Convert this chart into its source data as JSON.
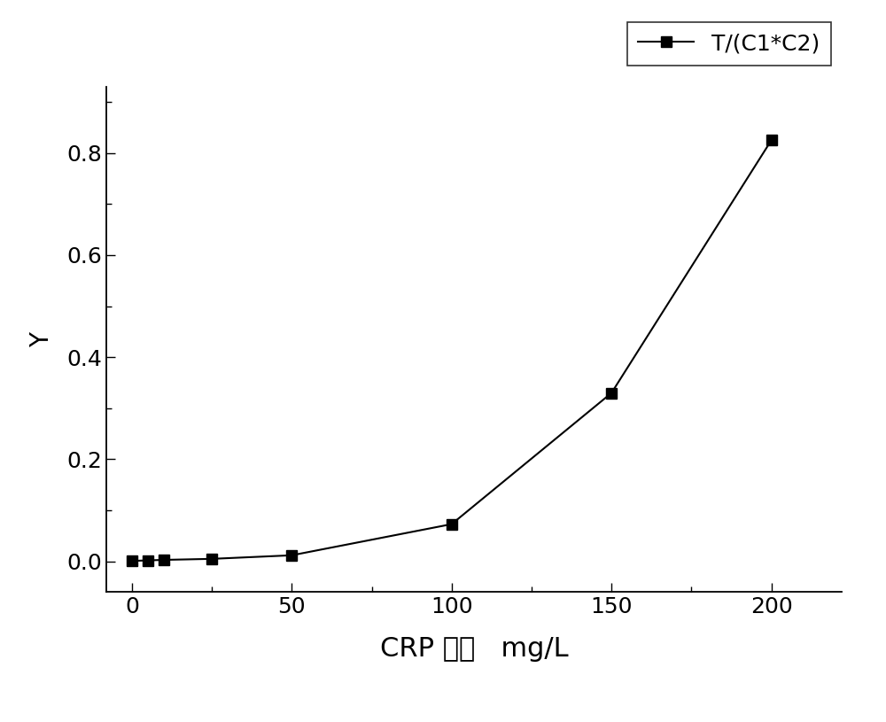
{
  "x": [
    0,
    5,
    10,
    25,
    50,
    100,
    150,
    200
  ],
  "y": [
    0.001,
    0.002,
    0.003,
    0.005,
    0.012,
    0.073,
    0.33,
    0.825
  ],
  "line_color": "#000000",
  "marker": "s",
  "marker_color": "#000000",
  "marker_size": 9,
  "linewidth": 1.5,
  "xlabel": "CRP 浓度   mg/L",
  "ylabel": "Y",
  "legend_label": "T/(C1*C2)",
  "xlim": [
    -8,
    222
  ],
  "ylim": [
    -0.06,
    0.93
  ],
  "xticks": [
    0,
    50,
    100,
    150,
    200
  ],
  "yticks": [
    0.0,
    0.2,
    0.4,
    0.6,
    0.8
  ],
  "xlabel_fontsize": 22,
  "ylabel_fontsize": 20,
  "tick_fontsize": 18,
  "legend_fontsize": 18,
  "background_color": "#ffffff"
}
